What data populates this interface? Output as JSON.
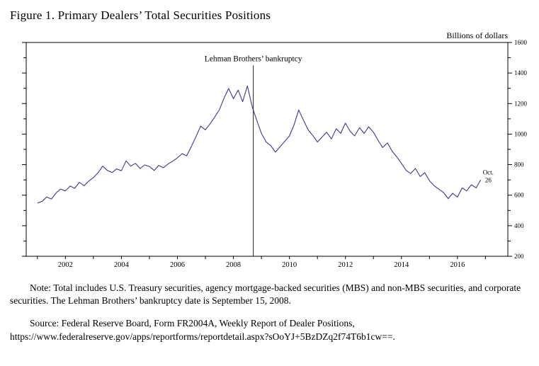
{
  "title": "Figure 1.  Primary Dealers’ Total Securities Positions",
  "note_text": "Note:  Total includes U.S. Treasury securities, agency mortgage-backed securities (MBS) and non-MBS securities, and corporate securities.  The Lehman Brothers’ bankruptcy date is September 15, 2008.",
  "source_line1": "Source:  Federal Reserve Board, Form FR2004A, Weekly Report of Dealer Positions,",
  "source_line2": "https://www.federalreserve.gov/apps/reportforms/reportdetail.aspx?sOoYJ+5BzDZq2f74T6b1cw==.",
  "chart_data": {
    "type": "line",
    "title": "Primary Dealers’ Total Securities Positions",
    "unit_label": "Billions of dollars",
    "xlim": [
      2000.6,
      2017.8
    ],
    "ylim": [
      200,
      1600
    ],
    "y_major_ticks": [
      200,
      400,
      600,
      800,
      1000,
      1200,
      1400,
      1600
    ],
    "y_minor_step": 100,
    "x_ticks": [
      2001,
      2002,
      2003,
      2004,
      2005,
      2006,
      2007,
      2008,
      2009,
      2010,
      2011,
      2012,
      2013,
      2014,
      2015,
      2016,
      2017
    ],
    "x_label_years": [
      "2002",
      "2004",
      "2006",
      "2008",
      "2010",
      "2012",
      "2014",
      "2016"
    ],
    "grid": false,
    "legend": "none",
    "frame_color": "#000000",
    "annotation": {
      "label": "Lehman Brothers’ bankruptcy",
      "x": 2008.71,
      "y_top": 1450,
      "date": "September 15, 2008"
    },
    "end_label": {
      "line1": "Oct.",
      "line2": "26",
      "x": 2017.1,
      "y": 735
    },
    "series": [
      {
        "name": "Primary dealers’ total securities positions (weekly)",
        "color": "#3b3894",
        "points": [
          [
            2001.0,
            548
          ],
          [
            2001.17,
            560
          ],
          [
            2001.33,
            588
          ],
          [
            2001.5,
            575
          ],
          [
            2001.67,
            615
          ],
          [
            2001.83,
            640
          ],
          [
            2002.0,
            628
          ],
          [
            2002.17,
            660
          ],
          [
            2002.33,
            645
          ],
          [
            2002.5,
            684
          ],
          [
            2002.67,
            662
          ],
          [
            2002.83,
            692
          ],
          [
            2003.0,
            715
          ],
          [
            2003.17,
            748
          ],
          [
            2003.33,
            790
          ],
          [
            2003.5,
            762
          ],
          [
            2003.67,
            748
          ],
          [
            2003.83,
            772
          ],
          [
            2004.0,
            760
          ],
          [
            2004.17,
            825
          ],
          [
            2004.33,
            790
          ],
          [
            2004.5,
            808
          ],
          [
            2004.67,
            775
          ],
          [
            2004.83,
            798
          ],
          [
            2005.0,
            788
          ],
          [
            2005.17,
            762
          ],
          [
            2005.33,
            795
          ],
          [
            2005.5,
            780
          ],
          [
            2005.67,
            805
          ],
          [
            2005.83,
            822
          ],
          [
            2006.0,
            845
          ],
          [
            2006.17,
            872
          ],
          [
            2006.33,
            858
          ],
          [
            2006.5,
            920
          ],
          [
            2006.67,
            986
          ],
          [
            2006.83,
            1052
          ],
          [
            2007.0,
            1028
          ],
          [
            2007.17,
            1068
          ],
          [
            2007.33,
            1112
          ],
          [
            2007.5,
            1160
          ],
          [
            2007.67,
            1238
          ],
          [
            2007.83,
            1298
          ],
          [
            2008.0,
            1232
          ],
          [
            2008.17,
            1288
          ],
          [
            2008.33,
            1212
          ],
          [
            2008.5,
            1316
          ],
          [
            2008.67,
            1180
          ],
          [
            2008.83,
            1092
          ],
          [
            2009.0,
            1005
          ],
          [
            2009.17,
            948
          ],
          [
            2009.33,
            925
          ],
          [
            2009.5,
            882
          ],
          [
            2009.67,
            918
          ],
          [
            2009.83,
            952
          ],
          [
            2010.0,
            988
          ],
          [
            2010.17,
            1062
          ],
          [
            2010.33,
            1158
          ],
          [
            2010.5,
            1092
          ],
          [
            2010.67,
            1028
          ],
          [
            2010.83,
            992
          ],
          [
            2011.0,
            948
          ],
          [
            2011.17,
            982
          ],
          [
            2011.33,
            1012
          ],
          [
            2011.5,
            968
          ],
          [
            2011.67,
            1035
          ],
          [
            2011.83,
            1005
          ],
          [
            2012.0,
            1072
          ],
          [
            2012.17,
            1018
          ],
          [
            2012.33,
            988
          ],
          [
            2012.5,
            1042
          ],
          [
            2012.67,
            1005
          ],
          [
            2012.83,
            1048
          ],
          [
            2013.0,
            1012
          ],
          [
            2013.17,
            958
          ],
          [
            2013.33,
            912
          ],
          [
            2013.5,
            942
          ],
          [
            2013.67,
            888
          ],
          [
            2013.83,
            852
          ],
          [
            2014.0,
            808
          ],
          [
            2014.17,
            762
          ],
          [
            2014.33,
            742
          ],
          [
            2014.5,
            775
          ],
          [
            2014.67,
            722
          ],
          [
            2014.83,
            748
          ],
          [
            2015.0,
            695
          ],
          [
            2015.17,
            662
          ],
          [
            2015.33,
            640
          ],
          [
            2015.5,
            618
          ],
          [
            2015.67,
            578
          ],
          [
            2015.83,
            612
          ],
          [
            2016.0,
            588
          ],
          [
            2016.17,
            648
          ],
          [
            2016.33,
            628
          ],
          [
            2016.5,
            668
          ],
          [
            2016.67,
            648
          ],
          [
            2016.83,
            700
          ]
        ]
      }
    ]
  }
}
